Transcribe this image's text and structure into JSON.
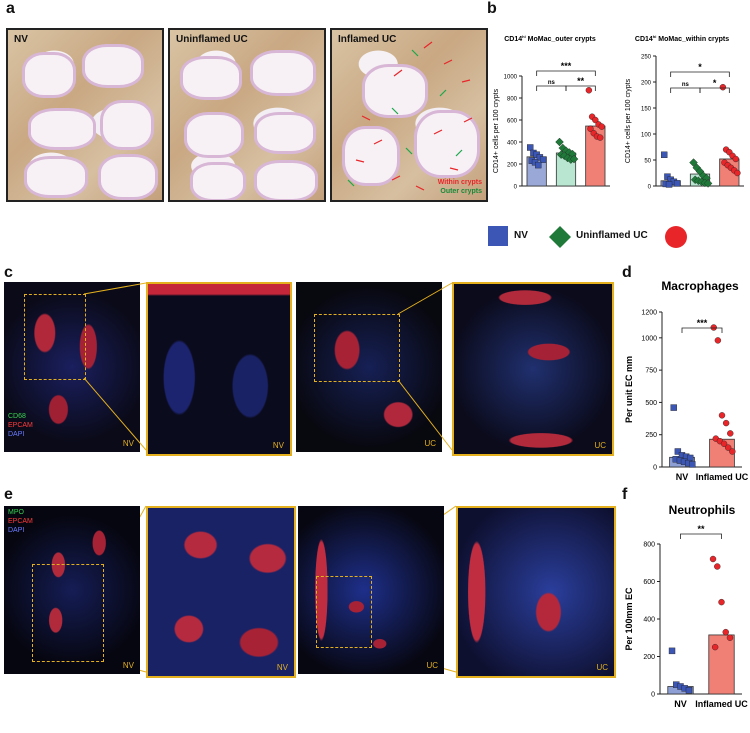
{
  "panels": {
    "a": "a",
    "b": "b",
    "c": "c",
    "d": "d",
    "e": "e",
    "f": "f"
  },
  "ihc": {
    "labels": [
      "NV",
      "Uninflamed UC",
      "Inflamed UC"
    ],
    "arrow_legend": [
      "Within crypts",
      "Outer crypts"
    ]
  },
  "fluor_c": {
    "legend": [
      "CD68",
      "EPCAM",
      "DAPI"
    ],
    "corner_labels": [
      "NV",
      "NV",
      "UC",
      "UC"
    ]
  },
  "fluor_e": {
    "legend": [
      "MPO",
      "EPCAM",
      "DAPI"
    ],
    "corner_labels": [
      "NV",
      "NV",
      "UC",
      "UC"
    ]
  },
  "legend_b": {
    "nv": "NV",
    "uninflamed": "Uninflamed UC",
    "nv_color": "#3b56b5",
    "uninflamed_color": "#1f7a3a",
    "inflamed_color": "#e8262a"
  },
  "chart_data": [
    {
      "id": "b1",
      "type": "bar",
      "title_pre": "CD14",
      "title_sup": "hi",
      "title_post": " MoMac_outer crypts",
      "ylabel": "CD14+ cells per 100 crypts",
      "ylim": [
        0,
        1000
      ],
      "yticks": [
        "0",
        "200",
        "400",
        "600",
        "800",
        "1000"
      ],
      "categories": [
        "NV",
        "Uninflamed UC",
        "Inflamed UC"
      ],
      "values": [
        265,
        300,
        545
      ],
      "colors": [
        "#9aa8d8",
        "#b8e6d0",
        "#f07f75"
      ],
      "points": [
        [
          350,
          300,
          285,
          260,
          240,
          230,
          215,
          190
        ],
        [
          400,
          345,
          320,
          305,
          290,
          285,
          275,
          255,
          240,
          245
        ],
        [
          870,
          630,
          600,
          560,
          540,
          520,
          480,
          450,
          440
        ]
      ],
      "marker": [
        "square",
        "diamond",
        "circle"
      ],
      "comparisons": [
        {
          "pair": [
            0,
            1
          ],
          "label": "ns"
        },
        {
          "pair": [
            1,
            2
          ],
          "label": "**"
        },
        {
          "pair": [
            0,
            2
          ],
          "label": "***"
        }
      ]
    },
    {
      "id": "b2",
      "type": "bar",
      "title_pre": "CD14",
      "title_sup": "hi",
      "title_post": " MoMac_within crypts",
      "ylabel": "CD14+ cells per 100 crypts",
      "ylim": [
        0,
        250
      ],
      "yticks": [
        "0",
        "50",
        "100",
        "150",
        "200",
        "250"
      ],
      "categories": [
        "NV",
        "Uninflamed UC",
        "Inflamed UC"
      ],
      "values": [
        10,
        23,
        52
      ],
      "colors": [
        "#9aa8d8",
        "#b8e6d0",
        "#f07f75"
      ],
      "points": [
        [
          60,
          18,
          12,
          8,
          5,
          4,
          3
        ],
        [
          45,
          35,
          28,
          20,
          15,
          12,
          10,
          8,
          6,
          5
        ],
        [
          190,
          70,
          65,
          58,
          52,
          45,
          40,
          35,
          30,
          25
        ]
      ],
      "marker": [
        "square",
        "diamond",
        "circle"
      ],
      "comparisons": [
        {
          "pair": [
            0,
            1
          ],
          "label": "ns"
        },
        {
          "pair": [
            1,
            2
          ],
          "label": "*"
        },
        {
          "pair": [
            0,
            2
          ],
          "label": "*"
        }
      ]
    },
    {
      "id": "d",
      "type": "bar",
      "title": "Macrophages",
      "ylabel": "Per unit EC mm",
      "ylim": [
        0,
        1200
      ],
      "yticks": [
        "0",
        "250",
        "500",
        "750",
        "1000",
        "1200"
      ],
      "categories": [
        "NV",
        "Inflamed UC"
      ],
      "values": [
        75,
        215
      ],
      "colors": [
        "#8e9fd6",
        "#f07f75"
      ],
      "points": [
        [
          460,
          120,
          90,
          80,
          70,
          60,
          50,
          40,
          30,
          20
        ],
        [
          1080,
          980,
          400,
          340,
          260,
          220,
          200,
          180,
          150,
          120
        ]
      ],
      "marker": [
        "square",
        "circle"
      ],
      "comparisons": [
        {
          "pair": [
            0,
            1
          ],
          "label": "***"
        }
      ]
    },
    {
      "id": "f",
      "type": "bar",
      "title": "Neutrophils",
      "ylabel": "Per 100mm EC",
      "ylim": [
        0,
        800
      ],
      "yticks": [
        "0",
        "200",
        "400",
        "600",
        "800"
      ],
      "categories": [
        "NV",
        "Inflamed UC"
      ],
      "values": [
        40,
        315
      ],
      "colors": [
        "#8e9fd6",
        "#f07f75"
      ],
      "points": [
        [
          230,
          50,
          40,
          30,
          20
        ],
        [
          720,
          680,
          490,
          330,
          300,
          250
        ]
      ],
      "marker": [
        "square",
        "circle"
      ],
      "comparisons": [
        {
          "pair": [
            0,
            1
          ],
          "label": "**"
        }
      ]
    }
  ]
}
